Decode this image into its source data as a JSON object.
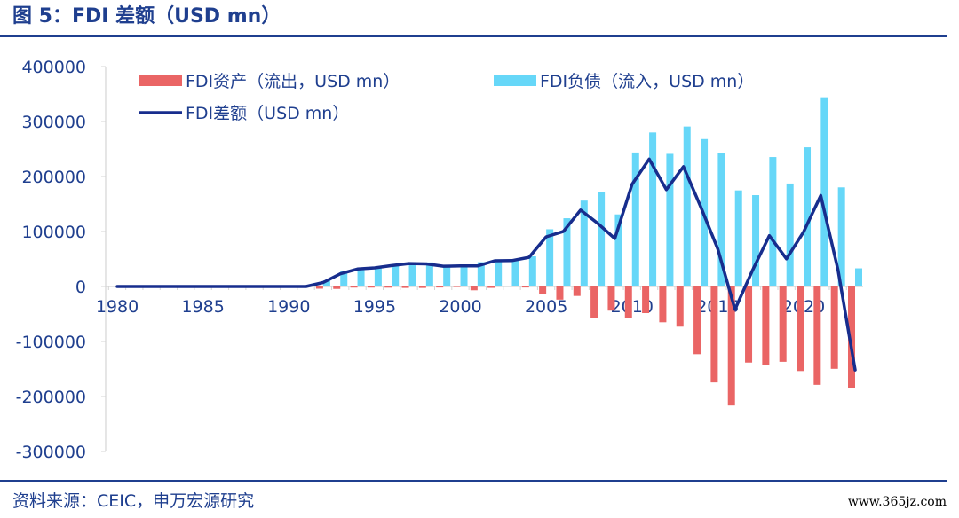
{
  "figure": {
    "title": "图 5：FDI 差额（USD mn）",
    "source": "资料来源：CEIC，申万宏源研究",
    "watermark": "www.365jz.com"
  },
  "colors": {
    "assets": "#ea6565",
    "liabilities": "#66d7f8",
    "balance": "#172d8d",
    "axis": "#d4d4d4",
    "label": "#1f3f8f"
  },
  "chart_data": {
    "type": "bar",
    "x": [
      1980,
      1981,
      1982,
      1983,
      1984,
      1985,
      1986,
      1987,
      1988,
      1989,
      1990,
      1991,
      1992,
      1993,
      1994,
      1995,
      1996,
      1997,
      1998,
      1999,
      2000,
      2001,
      2002,
      2003,
      2004,
      2005,
      2006,
      2007,
      2008,
      2009,
      2010,
      2011,
      2012,
      2013,
      2014,
      2015,
      2016,
      2017,
      2018,
      2019,
      2020,
      2021,
      2022,
      2023
    ],
    "xticks": [
      "1980",
      "1985",
      "1990",
      "1995",
      "2000",
      "2005",
      "2010",
      "2015",
      "2020"
    ],
    "xtick_values": [
      1980,
      1985,
      1990,
      1995,
      2000,
      2005,
      2010,
      2015,
      2020
    ],
    "ylim": [
      -300000,
      400000
    ],
    "yticks": [
      "400000",
      "300000",
      "200000",
      "100000",
      "0",
      "-100000",
      "-200000",
      "-300000"
    ],
    "ytick_values": [
      400000,
      300000,
      200000,
      100000,
      0,
      -100000,
      -200000,
      -300000
    ],
    "grid": false,
    "legend_position": "top",
    "series": [
      {
        "name": "FDI资产（流出，USD mn）",
        "kind": "bar",
        "values": [
          0,
          0,
          0,
          0,
          0,
          0,
          0,
          0,
          0,
          0,
          0,
          0,
          -4000,
          -4400,
          -2000,
          -2000,
          -2100,
          -2600,
          -2600,
          -1800,
          -900,
          -6900,
          -2500,
          0,
          -1800,
          -13700,
          -23900,
          -17200,
          -56700,
          -43900,
          -58000,
          -48400,
          -65000,
          -73000,
          -123100,
          -174400,
          -216400,
          -138300,
          -143000,
          -136900,
          -153700,
          -178800,
          -149700,
          -184700
        ]
      },
      {
        "name": "FDI负债（流入，USD mn）",
        "kind": "bar",
        "values": [
          0,
          0,
          0,
          0,
          0,
          0,
          0,
          0,
          0,
          0,
          0,
          0,
          11200,
          27500,
          33800,
          35800,
          40200,
          44200,
          43800,
          38800,
          38400,
          44200,
          49300,
          47100,
          54900,
          104100,
          124100,
          156200,
          171500,
          131100,
          243700,
          280100,
          241200,
          290900,
          268100,
          242500,
          174700,
          166100,
          235400,
          187200,
          253100,
          344100,
          180200,
          33000
        ]
      },
      {
        "name": "FDI差额（USD mn）",
        "kind": "line",
        "values": [
          0,
          0,
          0,
          0,
          0,
          0,
          0,
          0,
          0,
          0,
          0,
          0,
          7200,
          23100,
          31800,
          33800,
          38100,
          41700,
          41100,
          37000,
          37500,
          37400,
          46800,
          47100,
          53100,
          90400,
          100200,
          139000,
          114800,
          87200,
          185700,
          231700,
          176200,
          217900,
          145000,
          68100,
          -41700,
          27800,
          92400,
          50300,
          99400,
          165300,
          30500,
          -151700
        ]
      }
    ]
  }
}
